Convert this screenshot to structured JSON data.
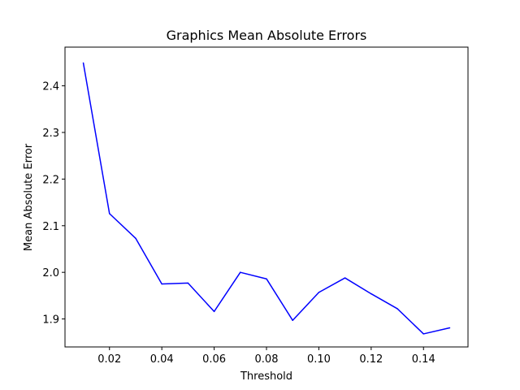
{
  "chart_data": {
    "type": "line",
    "title": "Graphics Mean Absolute Errors",
    "xlabel": "Threshold",
    "ylabel": "Mean Absolute Error",
    "xlim": [
      0.003,
      0.157
    ],
    "ylim": [
      1.84,
      2.483
    ],
    "xticks": [
      0.02,
      0.04,
      0.06,
      0.08,
      0.1,
      0.12,
      0.14
    ],
    "xtick_labels": [
      "0.02",
      "0.04",
      "0.06",
      "0.08",
      "0.10",
      "0.12",
      "0.14"
    ],
    "yticks": [
      1.9,
      2.0,
      2.1,
      2.2,
      2.3,
      2.4
    ],
    "ytick_labels": [
      "1.9",
      "2.0",
      "2.1",
      "2.2",
      "2.3",
      "2.4"
    ],
    "grid": false,
    "series": [
      {
        "color": "#0000ff",
        "x": [
          0.01,
          0.02,
          0.03,
          0.04,
          0.05,
          0.06,
          0.07,
          0.08,
          0.09,
          0.1,
          0.11,
          0.12,
          0.13,
          0.14,
          0.15
        ],
        "y": [
          2.449,
          2.126,
          2.073,
          1.975,
          1.977,
          1.916,
          2.0,
          1.986,
          1.897,
          1.957,
          1.988,
          1.954,
          1.922,
          1.868,
          1.881
        ]
      }
    ]
  }
}
